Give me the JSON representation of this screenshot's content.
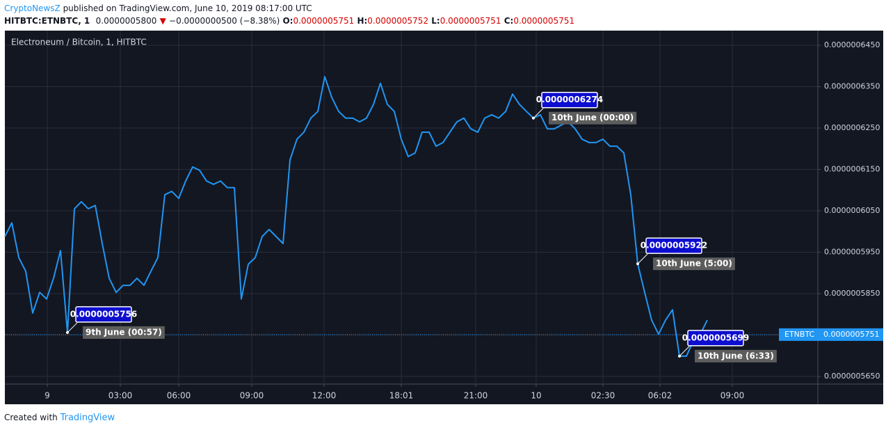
{
  "header": {
    "publisher": "CryptoNewsZ",
    "published": "published on TradingView.com, June 10, 2019 08:17:00 UTC"
  },
  "symbol_bar": {
    "symbol": "HITBTC:ETNBTC, 1",
    "last": "0.0000005800",
    "arrow": "▼",
    "change": "−0.0000000500 (−8.38%)",
    "o_label": "O:",
    "o": "0.0000005751",
    "h_label": "H:",
    "h": "0.0000005752",
    "l_label": "L:",
    "l": "0.0000005751",
    "c_label": "C:",
    "c": "0.0000005751"
  },
  "footer": {
    "created": "Created with",
    "brand": "TradingView"
  },
  "chart_data": {
    "type": "line",
    "title": "Electroneum / Bitcoin, 1, HITBTC",
    "series": [
      {
        "name": "ETNBTC",
        "color": "#2196f3",
        "values": [
          5.988e-07,
          6.021e-07,
          5.937e-07,
          5.904e-07,
          5.803e-07,
          5.853e-07,
          5.837e-07,
          5.887e-07,
          5.954e-07,
          5.756e-07,
          6.055e-07,
          6.072e-07,
          6.055e-07,
          6.063e-07,
          5.971e-07,
          5.887e-07,
          5.853e-07,
          5.87e-07,
          5.87e-07,
          5.887e-07,
          5.87e-07,
          5.904e-07,
          5.937e-07,
          6.089e-07,
          6.097e-07,
          6.08e-07,
          6.122e-07,
          6.156e-07,
          6.148e-07,
          6.122e-07,
          6.114e-07,
          6.122e-07,
          6.106e-07,
          6.106e-07,
          5.837e-07,
          5.921e-07,
          5.937e-07,
          5.988e-07,
          6.005e-07,
          5.988e-07,
          5.971e-07,
          6.173e-07,
          6.223e-07,
          6.24e-07,
          6.274e-07,
          6.29e-07,
          6.374e-07,
          6.324e-07,
          6.29e-07,
          6.274e-07,
          6.274e-07,
          6.265e-07,
          6.274e-07,
          6.307e-07,
          6.358e-07,
          6.307e-07,
          6.29e-07,
          6.223e-07,
          6.181e-07,
          6.19e-07,
          6.24e-07,
          6.24e-07,
          6.206e-07,
          6.215e-07,
          6.24e-07,
          6.265e-07,
          6.274e-07,
          6.248e-07,
          6.24e-07,
          6.274e-07,
          6.282e-07,
          6.274e-07,
          6.29e-07,
          6.332e-07,
          6.307e-07,
          6.29e-07,
          6.274e-07,
          6.282e-07,
          6.248e-07,
          6.248e-07,
          6.257e-07,
          6.265e-07,
          6.248e-07,
          6.223e-07,
          6.215e-07,
          6.215e-07,
          6.223e-07,
          6.206e-07,
          6.206e-07,
          6.19e-07,
          6.089e-07,
          5.922e-07,
          5.853e-07,
          5.786e-07,
          5.752e-07,
          5.786e-07,
          5.811e-07,
          5.699e-07,
          5.699e-07,
          5.736e-07,
          5.752e-07,
          5.786e-07
        ]
      }
    ],
    "ylim": [
      5.6315e-07,
      6.4853e-07
    ],
    "yticks": [
      {
        "value": 6.45e-07,
        "label": "0.0000006450"
      },
      {
        "value": 6.35e-07,
        "label": "0.0000006350"
      },
      {
        "value": 6.25e-07,
        "label": "0.0000006250"
      },
      {
        "value": 6.15e-07,
        "label": "0.0000006150"
      },
      {
        "value": 6.05e-07,
        "label": "0.0000006050"
      },
      {
        "value": 5.95e-07,
        "label": "0.0000005950"
      },
      {
        "value": 5.85e-07,
        "label": "0.0000005850"
      },
      {
        "value": 5.75e-07,
        "label": "0.0000005750"
      },
      {
        "value": 5.65e-07,
        "label": "0.0000005650"
      }
    ],
    "xlim": [
      0,
      116.9
    ],
    "xticks": [
      {
        "value": 6.1,
        "label": "9"
      },
      {
        "value": 16.6,
        "label": "03:00"
      },
      {
        "value": 25,
        "label": "06:00"
      },
      {
        "value": 35.5,
        "label": "09:00"
      },
      {
        "value": 45.9,
        "label": "12:00"
      },
      {
        "value": 57,
        "label": "18:01"
      },
      {
        "value": 67.7,
        "label": "21:00"
      },
      {
        "value": 76.4,
        "label": "10"
      },
      {
        "value": 86,
        "label": "02:30"
      },
      {
        "value": 94.2,
        "label": "06:02"
      },
      {
        "value": 104.6,
        "label": "09:00"
      }
    ],
    "grid": true,
    "last_price": {
      "value": 5.751e-07,
      "label": "0.0000005751"
    },
    "annotations": [
      {
        "x": 9,
        "value": 5.756e-07,
        "value_label": "0.0000005756",
        "label": "9th June (00:57)"
      },
      {
        "x": 76,
        "value": 6.274e-07,
        "value_label": "0.0000006274",
        "label": "10th June (00:00)"
      },
      {
        "x": 91,
        "value": 5.922e-07,
        "value_label": "0.0000005922",
        "label": "10th June (5:00)"
      },
      {
        "x": 97,
        "value": 5.699e-07,
        "value_label": "0.0000005699",
        "label": "10th June (6:33)"
      }
    ]
  }
}
